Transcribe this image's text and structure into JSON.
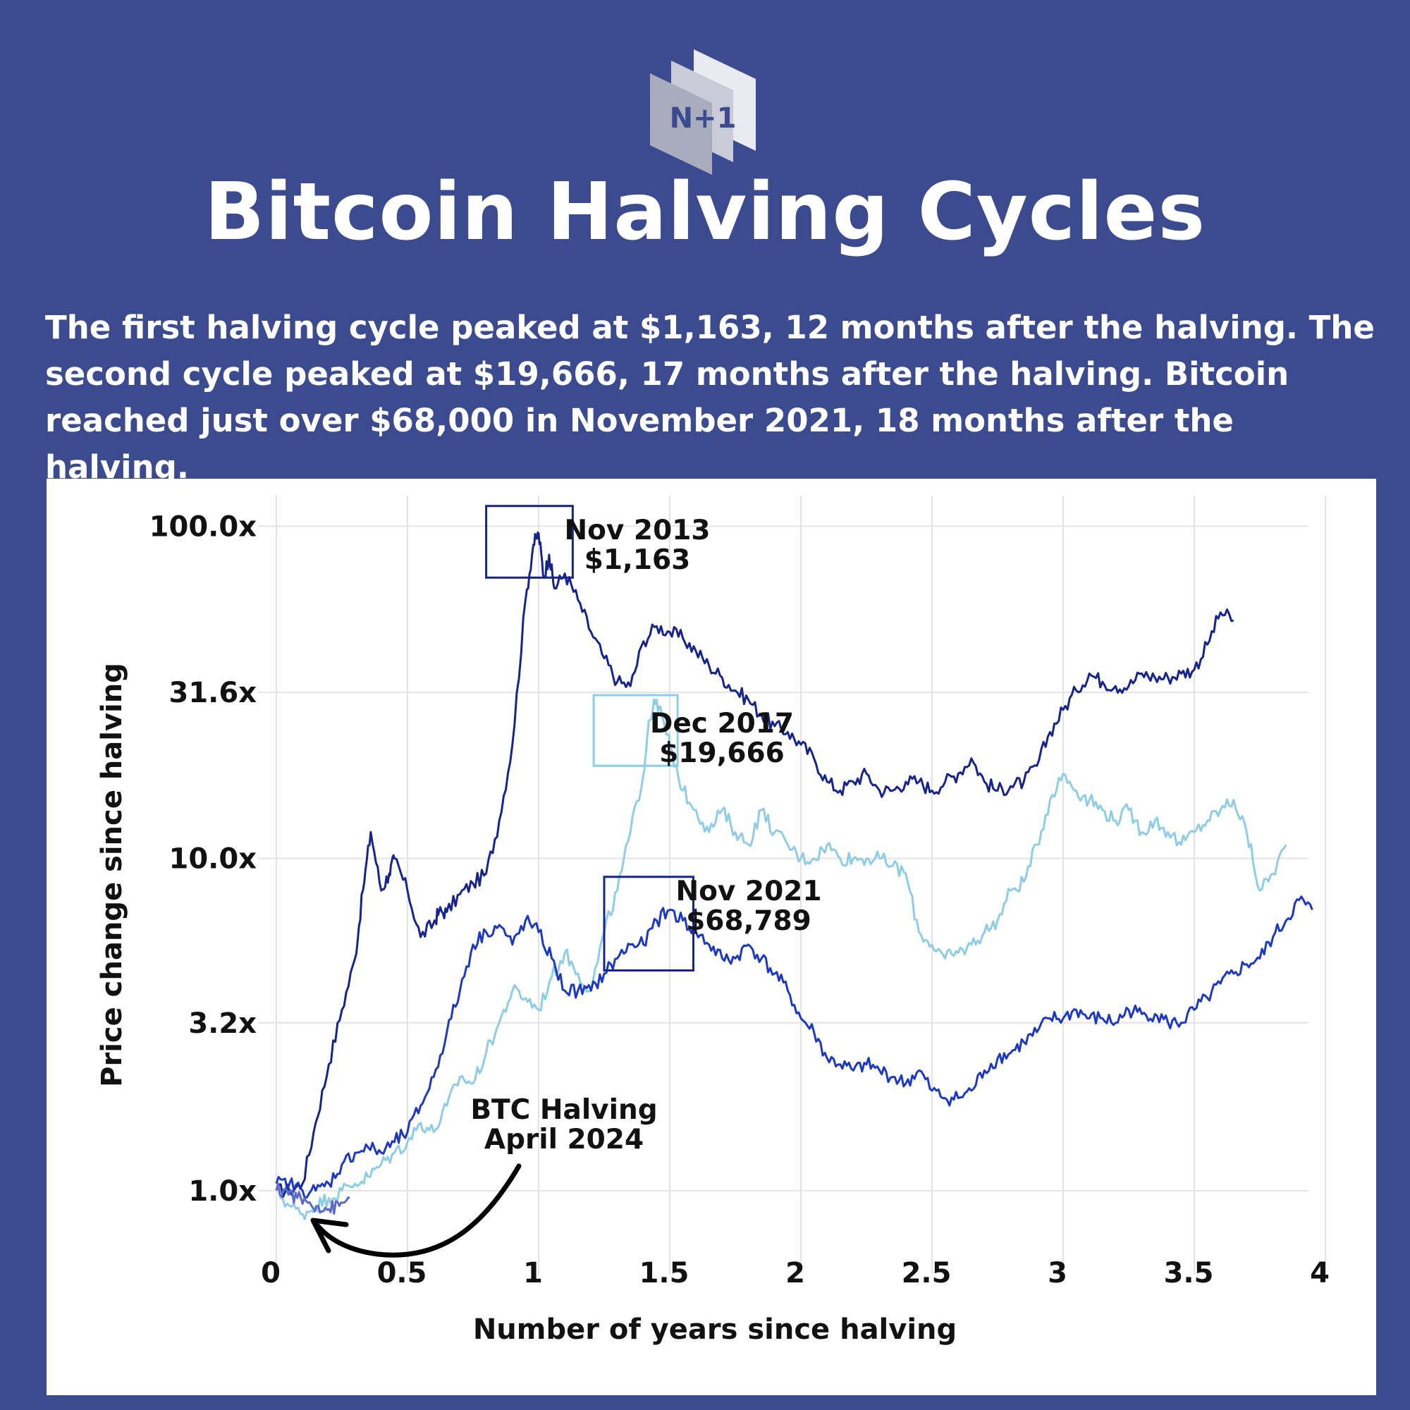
{
  "header": {
    "logo_text": "N+1",
    "title": "Bitcoin Halving Cycles",
    "subtitle": "The first halving cycle peaked at $1,163, 12 months after the halving. The second cycle peaked at $19,666, 17 months after the halving. Bitcoin reached just over $68,000 in November 2021, 18 months after the halving."
  },
  "colors": {
    "background": "#3c4b8f",
    "cycle1": "#16248c",
    "cycle2": "#8fcde6",
    "cycle3": "#1c39c0",
    "cycle4": "#5a6bc8"
  },
  "chart_data": {
    "type": "line",
    "xlabel": "Number of years since halving",
    "ylabel": "Price change since halving",
    "y_scale": "log",
    "xlim": [
      0,
      4
    ],
    "ylim": [
      0.65,
      120
    ],
    "x_ticks": [
      "0",
      "0.5",
      "1",
      "1.5",
      "2",
      "2.5",
      "3",
      "3.5",
      "4"
    ],
    "x_tick_values": [
      0,
      0.5,
      1,
      1.5,
      2,
      2.5,
      3,
      3.5,
      4
    ],
    "y_ticks": [
      "1.0x",
      "3.2x",
      "10.0x",
      "31.6x",
      "100.0x"
    ],
    "y_tick_values": [
      1.0,
      3.2,
      10.0,
      31.6,
      100.0
    ],
    "grid": true,
    "series": [
      {
        "color_key": "cycle1",
        "x": [
          0,
          0.05,
          0.1,
          0.15,
          0.2,
          0.25,
          0.3,
          0.33,
          0.36,
          0.4,
          0.43,
          0.45,
          0.5,
          0.55,
          0.6,
          0.62,
          0.65,
          0.7,
          0.75,
          0.8,
          0.85,
          0.9,
          0.95,
          0.98,
          1.0,
          1.02,
          1.04,
          1.06,
          1.1,
          1.15,
          1.2,
          1.25,
          1.3,
          1.35,
          1.4,
          1.45,
          1.5,
          1.55,
          1.6,
          1.65,
          1.7,
          1.75,
          1.8,
          1.85,
          1.9,
          1.95,
          2.0,
          2.05,
          2.1,
          2.15,
          2.2,
          2.25,
          2.3,
          2.35,
          2.4,
          2.45,
          2.5,
          2.55,
          2.6,
          2.65,
          2.7,
          2.75,
          2.8,
          2.85,
          2.9,
          2.95,
          3.0,
          3.05,
          3.1,
          3.15,
          3.2,
          3.25,
          3.3,
          3.35,
          3.4,
          3.45,
          3.5,
          3.55,
          3.6,
          3.65
        ],
        "values": [
          1.0,
          1.0,
          1.05,
          1.6,
          2.4,
          3.5,
          5.0,
          8.0,
          12.0,
          8.0,
          9.0,
          10.0,
          8.0,
          5.8,
          6.4,
          6.9,
          6.9,
          7.8,
          8.4,
          9.0,
          13.0,
          22.0,
          60.0,
          88.0,
          95.0,
          70.0,
          82.0,
          65.0,
          72.0,
          60.0,
          48.0,
          40.0,
          34.0,
          33.0,
          45.0,
          50.0,
          48.0,
          46.0,
          42.0,
          38.0,
          35.0,
          32.0,
          30.0,
          27.0,
          25.0,
          24.0,
          22.0,
          20.0,
          17.0,
          16.0,
          17.0,
          18.0,
          16.0,
          16.0,
          17.0,
          17.0,
          16.0,
          17.0,
          18.0,
          20.0,
          17.0,
          16.0,
          16.5,
          17.0,
          19.0,
          24.0,
          28.0,
          32.0,
          36.0,
          34.0,
          33.0,
          33.0,
          36.0,
          35.0,
          35.0,
          36.0,
          37.0,
          44.0,
          55.0,
          52.0
        ]
      },
      {
        "color_key": "cycle2",
        "x": [
          0,
          0.05,
          0.1,
          0.15,
          0.2,
          0.25,
          0.3,
          0.35,
          0.4,
          0.45,
          0.5,
          0.55,
          0.6,
          0.65,
          0.7,
          0.75,
          0.8,
          0.85,
          0.9,
          0.95,
          1.0,
          1.05,
          1.1,
          1.15,
          1.2,
          1.25,
          1.3,
          1.35,
          1.4,
          1.42,
          1.45,
          1.48,
          1.5,
          1.55,
          1.6,
          1.65,
          1.7,
          1.75,
          1.8,
          1.85,
          1.9,
          1.95,
          2.0,
          2.05,
          2.1,
          2.15,
          2.2,
          2.25,
          2.3,
          2.35,
          2.4,
          2.45,
          2.5,
          2.55,
          2.6,
          2.65,
          2.7,
          2.75,
          2.8,
          2.85,
          2.9,
          2.95,
          3.0,
          3.05,
          3.1,
          3.15,
          3.2,
          3.25,
          3.3,
          3.35,
          3.4,
          3.45,
          3.5,
          3.55,
          3.6,
          3.65,
          3.7,
          3.75,
          3.8,
          3.85
        ],
        "values": [
          1.0,
          0.9,
          0.85,
          0.9,
          0.95,
          1.0,
          1.05,
          1.1,
          1.2,
          1.3,
          1.4,
          1.6,
          1.5,
          1.8,
          2.2,
          2.1,
          2.6,
          3.2,
          4.0,
          3.8,
          3.5,
          4.4,
          5.2,
          4.5,
          4.0,
          6.0,
          8.0,
          12.0,
          18.0,
          26.0,
          30.0,
          25.0,
          22.0,
          16.0,
          14.0,
          12.0,
          14.0,
          12.0,
          11.0,
          14.0,
          12.0,
          11.0,
          10.0,
          10.0,
          11.0,
          10.0,
          10.0,
          10.0,
          10.0,
          9.5,
          9.0,
          6.0,
          5.5,
          5.0,
          5.2,
          5.5,
          6.0,
          6.5,
          8.0,
          8.5,
          11.0,
          15.0,
          18.0,
          16.0,
          15.0,
          14.0,
          13.0,
          14.0,
          12.0,
          13.0,
          12.0,
          11.0,
          12.0,
          13.0,
          14.0,
          15.0,
          12.0,
          8.0,
          9.0,
          11.0
        ]
      },
      {
        "color_key": "cycle3",
        "x": [
          0,
          0.05,
          0.1,
          0.15,
          0.2,
          0.25,
          0.3,
          0.35,
          0.4,
          0.45,
          0.5,
          0.55,
          0.6,
          0.65,
          0.7,
          0.75,
          0.8,
          0.85,
          0.9,
          0.95,
          1.0,
          1.05,
          1.1,
          1.15,
          1.2,
          1.25,
          1.3,
          1.35,
          1.4,
          1.45,
          1.5,
          1.55,
          1.6,
          1.65,
          1.7,
          1.75,
          1.8,
          1.85,
          1.9,
          1.95,
          2.0,
          2.05,
          2.1,
          2.15,
          2.2,
          2.25,
          2.3,
          2.35,
          2.4,
          2.45,
          2.5,
          2.55,
          2.6,
          2.65,
          2.7,
          2.75,
          2.8,
          2.85,
          2.9,
          2.95,
          3.0,
          3.05,
          3.1,
          3.15,
          3.2,
          3.25,
          3.3,
          3.35,
          3.4,
          3.45,
          3.5,
          3.55,
          3.6,
          3.65,
          3.7,
          3.75,
          3.8,
          3.85,
          3.9,
          3.95
        ],
        "values": [
          1.05,
          1.05,
          1.0,
          1.0,
          1.05,
          1.2,
          1.3,
          1.35,
          1.3,
          1.4,
          1.5,
          1.8,
          2.2,
          3.0,
          4.0,
          5.5,
          6.0,
          6.3,
          5.5,
          6.5,
          6.0,
          5.0,
          4.0,
          4.0,
          4.0,
          4.5,
          5.0,
          5.5,
          5.5,
          6.5,
          7.0,
          6.5,
          6.0,
          5.5,
          5.0,
          5.0,
          5.5,
          5.0,
          4.5,
          4.0,
          3.3,
          3.0,
          2.5,
          2.4,
          2.3,
          2.4,
          2.3,
          2.2,
          2.1,
          2.3,
          2.0,
          1.9,
          1.9,
          2.0,
          2.3,
          2.5,
          2.6,
          2.8,
          3.0,
          3.3,
          3.3,
          3.5,
          3.3,
          3.3,
          3.2,
          3.5,
          3.4,
          3.4,
          3.2,
          3.2,
          3.5,
          3.8,
          4.2,
          4.5,
          4.8,
          5.0,
          5.8,
          6.5,
          7.5,
          7.0
        ]
      },
      {
        "color_key": "cycle4",
        "x": [
          0,
          0.04,
          0.08,
          0.12,
          0.16,
          0.2,
          0.24,
          0.28
        ],
        "values": [
          1.0,
          1.0,
          0.95,
          0.92,
          0.9,
          0.88,
          0.9,
          0.95
        ]
      }
    ],
    "annotations": [
      {
        "lines": [
          "Nov 2013",
          "$1,163"
        ],
        "box_x": [
          0.8,
          1.13
        ],
        "box_y": [
          70,
          115
        ],
        "color_key": "cycle1"
      },
      {
        "lines": [
          "Dec 2017",
          "$19,666"
        ],
        "box_x": [
          1.21,
          1.53
        ],
        "box_y": [
          19,
          31
        ],
        "color_key": "cycle2"
      },
      {
        "lines": [
          "Nov 2021",
          "$68,789"
        ],
        "box_x": [
          1.25,
          1.59
        ],
        "box_y": [
          4.6,
          8.8
        ],
        "color_key": "cycle1"
      },
      {
        "lines": [
          "BTC Halving",
          "April 2024"
        ]
      }
    ]
  }
}
